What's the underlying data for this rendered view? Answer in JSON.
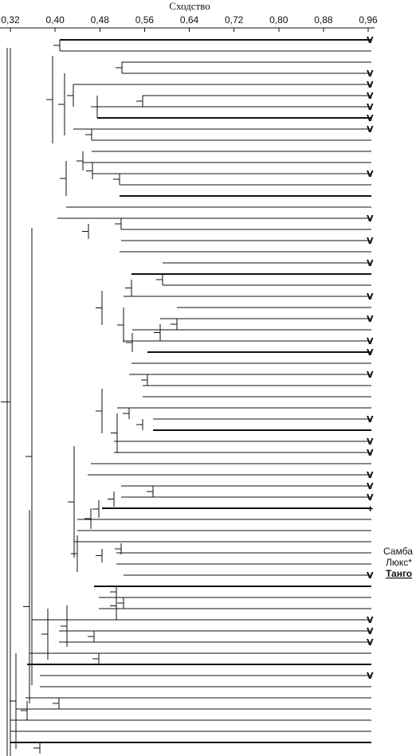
{
  "chart_data": {
    "type": "dendrogram",
    "axis_title": "Сходство",
    "axis_ticks": [
      "0,32",
      "0,40",
      "0,48",
      "0,56",
      "0,64",
      "0,72",
      "0,80",
      "0,88",
      "0,96"
    ],
    "axis_range": [
      0.32,
      0.96
    ],
    "visible_leaf_labels": [
      {
        "text": "Самба",
        "mark": "V"
      },
      {
        "text": "Люкс*",
        "mark": "+"
      },
      {
        "text": "Танго",
        "mark": "",
        "bold": true
      }
    ],
    "leaf_marks": [
      "V",
      "",
      "",
      "V",
      "V",
      "V",
      "V",
      "V",
      "V",
      "",
      "",
      "",
      "V",
      "",
      "",
      "",
      "V",
      "",
      "V",
      "",
      "V",
      "",
      "",
      "V",
      "",
      "V",
      "",
      "V",
      "V",
      "",
      "V",
      "",
      "",
      "",
      "V",
      "",
      "V",
      "V",
      "",
      "V",
      "V",
      "V",
      "+",
      "",
      "",
      "",
      "",
      "",
      "V",
      "",
      "",
      "",
      "V",
      "V",
      "V",
      "",
      "",
      "V"
    ]
  }
}
